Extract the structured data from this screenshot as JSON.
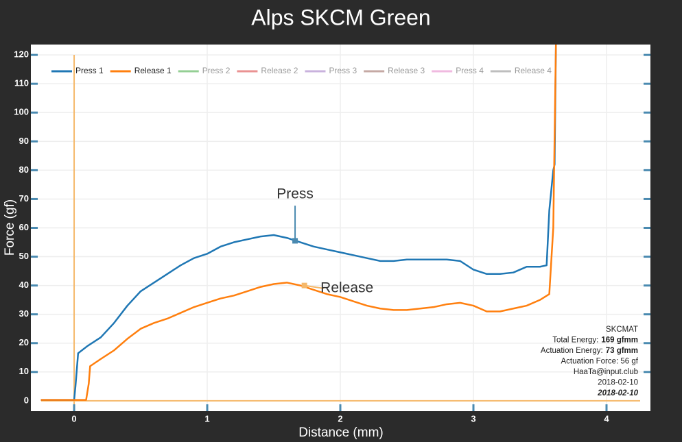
{
  "chart_data": {
    "type": "line",
    "title": "Alps SKCM Green",
    "x_label": "Distance (mm)",
    "y_label": "Force (gf)",
    "xlim": [
      -0.325,
      4.33
    ],
    "ylim": [
      -3.6,
      123.6
    ],
    "xticks": [
      0,
      1,
      2,
      3,
      4
    ],
    "yticks": [
      0,
      10,
      20,
      30,
      40,
      50,
      60,
      70,
      80,
      90,
      100,
      110,
      120
    ],
    "grid": true,
    "legend": "top-left",
    "series": [
      {
        "name": "Press 1",
        "color": "#1f77b4",
        "visible": true,
        "x": [
          -0.25,
          0.0,
          0.01,
          0.03,
          0.1,
          0.2,
          0.3,
          0.4,
          0.5,
          0.6,
          0.7,
          0.8,
          0.9,
          1.0,
          1.1,
          1.2,
          1.3,
          1.4,
          1.5,
          1.6,
          1.7,
          1.8,
          1.9,
          2.0,
          2.1,
          2.2,
          2.3,
          2.4,
          2.5,
          2.6,
          2.7,
          2.8,
          2.9,
          3.0,
          3.1,
          3.2,
          3.3,
          3.4,
          3.5,
          3.55,
          3.57,
          3.6,
          3.61,
          3.62
        ],
        "values": [
          0.3,
          0.3,
          5,
          16.5,
          19,
          22,
          27,
          33,
          38,
          41,
          44,
          47,
          49.5,
          51,
          53.5,
          55,
          56,
          57,
          57.5,
          56.5,
          55,
          53.5,
          52.5,
          51.5,
          50.5,
          49.5,
          48.5,
          48.5,
          49,
          49,
          49,
          49,
          48.5,
          45.5,
          44,
          44,
          44.5,
          46.5,
          46.5,
          47,
          66,
          80,
          82,
          124
        ]
      },
      {
        "name": "Release 1",
        "color": "#ff7f0e",
        "visible": true,
        "x": [
          -0.25,
          0.09,
          0.11,
          0.12,
          0.2,
          0.3,
          0.4,
          0.5,
          0.6,
          0.7,
          0.8,
          0.9,
          1.0,
          1.1,
          1.2,
          1.3,
          1.4,
          1.5,
          1.6,
          1.7,
          1.8,
          1.9,
          2.0,
          2.1,
          2.2,
          2.3,
          2.4,
          2.5,
          2.6,
          2.7,
          2.8,
          2.9,
          3.0,
          3.1,
          3.2,
          3.3,
          3.4,
          3.5,
          3.57,
          3.6,
          3.62
        ],
        "values": [
          0.3,
          0.3,
          6,
          12,
          14.5,
          17.5,
          21.5,
          25,
          27,
          28.5,
          30.5,
          32.5,
          34,
          35.5,
          36.5,
          38,
          39.5,
          40.5,
          41,
          40,
          38.5,
          37,
          36,
          34.5,
          33,
          32,
          31.5,
          31.5,
          32,
          32.5,
          33.5,
          34,
          33,
          31,
          31,
          32,
          33,
          35,
          37,
          60,
          124
        ]
      },
      {
        "name": "Press 2",
        "color": "#2ca02c",
        "visible": false,
        "x": [],
        "values": []
      },
      {
        "name": "Release 2",
        "color": "#d62728",
        "visible": false,
        "x": [],
        "values": []
      },
      {
        "name": "Press 3",
        "color": "#9467bd",
        "visible": false,
        "x": [],
        "values": []
      },
      {
        "name": "Release 3",
        "color": "#8c564b",
        "visible": false,
        "x": [],
        "values": []
      },
      {
        "name": "Press 4",
        "color": "#e377c2",
        "visible": false,
        "x": [],
        "values": []
      },
      {
        "name": "Release 4",
        "color": "#7f7f7f",
        "visible": false,
        "x": [],
        "values": []
      }
    ],
    "annotations": [
      {
        "text": "Press",
        "x": 1.66,
        "y": 55.5,
        "text_x": 1.66,
        "text_y": 71.5
      },
      {
        "text": "Release",
        "x": 1.73,
        "y": 40,
        "text_x": 2.05,
        "text_y": 39
      }
    ],
    "info": [
      {
        "text": "SKCMAT"
      },
      {
        "text": "Total Energy:",
        "bold": "169 gfmm"
      },
      {
        "text": "Actuation Energy:",
        "bold": "73 gfmm"
      },
      {
        "text": "Actuation Force: 56 gf"
      },
      {
        "text": "HaaTa@input.club"
      },
      {
        "text": "2018-02-10"
      },
      {
        "bolditalic": "2018-02-10"
      }
    ]
  }
}
